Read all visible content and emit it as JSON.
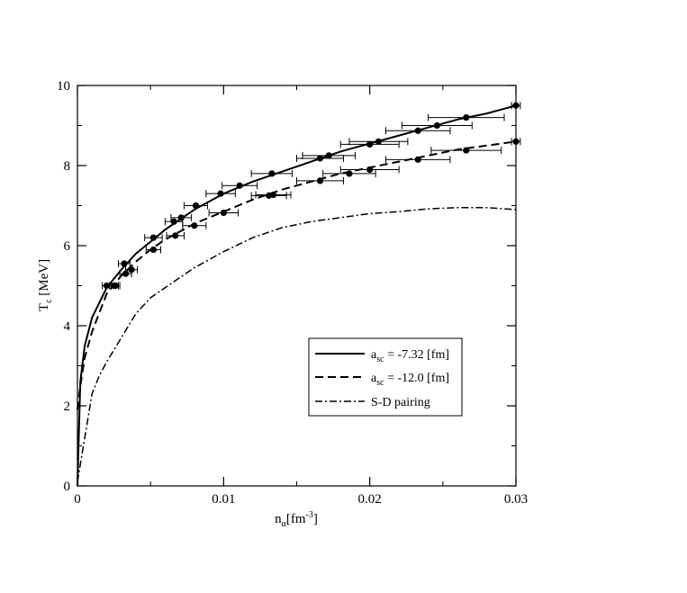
{
  "chart_data": {
    "type": "line",
    "xlabel": "n_α[fm^-3]",
    "xlabel_parts": {
      "main": "n",
      "sub": "α",
      "bracket_open": "[fm",
      "sup": "-3",
      "bracket_close": "]"
    },
    "ylabel": "T_c [MeV]",
    "ylabel_parts": {
      "main": "T",
      "sub": "c",
      "rest": " [MeV]"
    },
    "xlim": [
      0,
      0.03
    ],
    "ylim": [
      0,
      10
    ],
    "xticks": [
      0,
      0.01,
      0.02,
      0.03
    ],
    "xtick_labels": [
      "0",
      "0.01",
      "0.02",
      "0.03"
    ],
    "yticks": [
      0,
      2,
      4,
      6,
      8,
      10
    ],
    "ytick_labels": [
      "0",
      "2",
      "4",
      "6",
      "8",
      "10"
    ],
    "grid": false,
    "legend_position": "lower-right",
    "series": [
      {
        "name": "a_sc = -7.32 [fm]",
        "legend_parts": {
          "main": "a",
          "sub": "sc",
          "rest": " = -7.32 [fm]"
        },
        "style": "solid",
        "x": [
          0,
          0.0002,
          0.0005,
          0.001,
          0.002,
          0.003,
          0.004,
          0.005,
          0.006,
          0.007,
          0.008,
          0.01,
          0.012,
          0.014,
          0.016,
          0.018,
          0.02,
          0.022,
          0.024,
          0.026,
          0.028,
          0.03
        ],
        "y": [
          0,
          2.6,
          3.5,
          4.2,
          4.95,
          5.4,
          5.8,
          6.1,
          6.4,
          6.65,
          6.9,
          7.3,
          7.6,
          7.85,
          8.1,
          8.35,
          8.55,
          8.75,
          8.95,
          9.15,
          9.3,
          9.5
        ],
        "points": [
          {
            "x": 0.002,
            "y": 5.0,
            "xerr": 0.0003
          },
          {
            "x": 0.0025,
            "y": 5.0,
            "xerr": 0.0003
          },
          {
            "x": 0.0032,
            "y": 5.55,
            "xerr": 0.0004
          },
          {
            "x": 0.0052,
            "y": 6.2,
            "xerr": 0.0006
          },
          {
            "x": 0.0066,
            "y": 6.6,
            "xerr": 0.0006
          },
          {
            "x": 0.0071,
            "y": 6.7,
            "xerr": 0.0007
          },
          {
            "x": 0.0081,
            "y": 7.0,
            "xerr": 0.0008
          },
          {
            "x": 0.0098,
            "y": 7.3,
            "xerr": 0.001
          },
          {
            "x": 0.0111,
            "y": 7.5,
            "xerr": 0.0012
          },
          {
            "x": 0.0133,
            "y": 7.8,
            "xerr": 0.0014
          },
          {
            "x": 0.0166,
            "y": 8.18,
            "xerr": 0.0016
          },
          {
            "x": 0.0172,
            "y": 8.25,
            "xerr": 0.0018
          },
          {
            "x": 0.02,
            "y": 8.53,
            "xerr": 0.002
          },
          {
            "x": 0.0206,
            "y": 8.6,
            "xerr": 0.002
          },
          {
            "x": 0.0233,
            "y": 8.87,
            "xerr": 0.0022
          },
          {
            "x": 0.0246,
            "y": 9.0,
            "xerr": 0.0024
          },
          {
            "x": 0.0266,
            "y": 9.2,
            "xerr": 0.0026
          },
          {
            "x": 0.03,
            "y": 9.5,
            "xerr": 0.0003
          }
        ]
      },
      {
        "name": "a_sc = -12.0 [fm]",
        "legend_parts": {
          "main": "a",
          "sub": "sc",
          "rest": " = -12.0 [fm]"
        },
        "style": "dashed",
        "x": [
          0,
          0.0002,
          0.0005,
          0.001,
          0.002,
          0.003,
          0.004,
          0.005,
          0.006,
          0.007,
          0.008,
          0.01,
          0.012,
          0.014,
          0.016,
          0.018,
          0.02,
          0.022,
          0.024,
          0.026,
          0.028,
          0.03
        ],
        "y": [
          1.9,
          2.5,
          3.2,
          3.85,
          4.8,
          5.25,
          5.6,
          5.9,
          6.15,
          6.35,
          6.55,
          6.85,
          7.15,
          7.4,
          7.6,
          7.8,
          7.95,
          8.1,
          8.25,
          8.4,
          8.5,
          8.6
        ],
        "points": [
          {
            "x": 0.0026,
            "y": 5.0,
            "xerr": 0.0003
          },
          {
            "x": 0.0033,
            "y": 5.3,
            "xerr": 0.0004
          },
          {
            "x": 0.0037,
            "y": 5.4,
            "xerr": 0.0004
          },
          {
            "x": 0.0052,
            "y": 5.9,
            "xerr": 0.0005
          },
          {
            "x": 0.0067,
            "y": 6.25,
            "xerr": 0.0006
          },
          {
            "x": 0.008,
            "y": 6.5,
            "xerr": 0.0008
          },
          {
            "x": 0.01,
            "y": 6.82,
            "xerr": 0.001
          },
          {
            "x": 0.0131,
            "y": 7.25,
            "xerr": 0.0012
          },
          {
            "x": 0.0134,
            "y": 7.27,
            "xerr": 0.0012
          },
          {
            "x": 0.0166,
            "y": 7.62,
            "xerr": 0.0016
          },
          {
            "x": 0.0186,
            "y": 7.8,
            "xerr": 0.0018
          },
          {
            "x": 0.02,
            "y": 7.9,
            "xerr": 0.002
          },
          {
            "x": 0.0233,
            "y": 8.15,
            "xerr": 0.0022
          },
          {
            "x": 0.0266,
            "y": 8.38,
            "xerr": 0.0024
          },
          {
            "x": 0.03,
            "y": 8.6,
            "xerr": 0.0003
          }
        ]
      },
      {
        "name": "S-D pairing",
        "style": "dashdot",
        "x": [
          0,
          0.0005,
          0.001,
          0.0015,
          0.002,
          0.003,
          0.004,
          0.005,
          0.006,
          0.008,
          0.01,
          0.012,
          0.014,
          0.016,
          0.018,
          0.02,
          0.022,
          0.024,
          0.026,
          0.028,
          0.03
        ],
        "y": [
          0.1,
          1.2,
          2.3,
          2.75,
          3.1,
          3.7,
          4.3,
          4.7,
          4.95,
          5.45,
          5.85,
          6.2,
          6.45,
          6.6,
          6.7,
          6.8,
          6.85,
          6.92,
          6.95,
          6.95,
          6.9
        ]
      }
    ]
  }
}
